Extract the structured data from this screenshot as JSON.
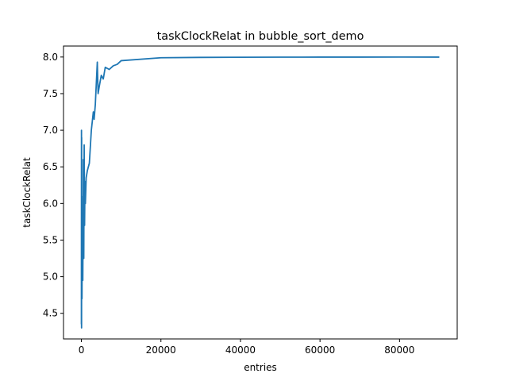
{
  "chart_data": {
    "type": "line",
    "title": "taskClockRelat in bubble_sort_demo",
    "xlabel": "entries",
    "ylabel": "taskClockRelat",
    "xlim": [
      -4500,
      94500
    ],
    "ylim": [
      4.15,
      8.15
    ],
    "xticks": [
      0,
      20000,
      40000,
      60000,
      80000
    ],
    "xtick_labels": [
      "0",
      "20000",
      "40000",
      "60000",
      "80000"
    ],
    "yticks": [
      4.5,
      5.0,
      5.5,
      6.0,
      6.5,
      7.0,
      7.5,
      8.0
    ],
    "ytick_labels": [
      "4.5",
      "5.0",
      "5.5",
      "6.0",
      "6.5",
      "7.0",
      "7.5",
      "8.0"
    ],
    "grid": false,
    "series": [
      {
        "color": "#1f77b4",
        "x": [
          0,
          20,
          40,
          60,
          80,
          100,
          150,
          200,
          250,
          300,
          350,
          400,
          450,
          500,
          600,
          700,
          800,
          900,
          1000,
          1200,
          1500,
          2000,
          2500,
          3000,
          3200,
          3500,
          4000,
          4200,
          4500,
          5000,
          5500,
          6000,
          7000,
          8000,
          9000,
          10000,
          20000,
          30000,
          40000,
          50000,
          60000,
          70000,
          80000,
          90000
        ],
        "y": [
          4.35,
          7.0,
          4.3,
          6.9,
          4.7,
          6.1,
          4.7,
          5.65,
          5.0,
          5.6,
          4.95,
          5.5,
          5.3,
          6.6,
          5.25,
          6.8,
          5.7,
          6.3,
          6.0,
          6.35,
          6.45,
          6.55,
          7.0,
          7.25,
          7.15,
          7.35,
          7.93,
          7.5,
          7.6,
          7.75,
          7.7,
          7.86,
          7.83,
          7.88,
          7.9,
          7.95,
          7.99,
          7.995,
          7.997,
          7.998,
          7.999,
          7.999,
          8.0,
          7.999
        ]
      }
    ]
  }
}
